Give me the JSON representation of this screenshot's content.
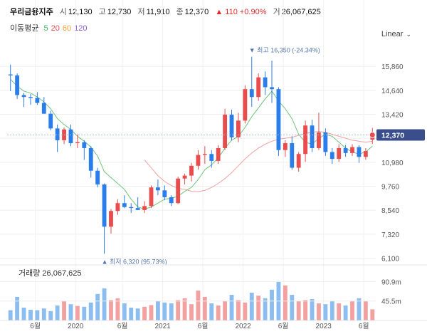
{
  "header": {
    "name": "우리금융지주",
    "open_label": "시",
    "open": "12,130",
    "high_label": "고",
    "high": "12,730",
    "low_label": "저",
    "low": "11,910",
    "close_label": "종",
    "close": "12,370",
    "change": "▲ 110 +0.90%",
    "volume_label": "거",
    "volume": "26,067,625"
  },
  "moving_average": {
    "label": "이동평균",
    "periods": [
      "5",
      "20",
      "60",
      "120"
    ],
    "colors": [
      "#3cba54",
      "#e84c4c",
      "#f0a030",
      "#8a5cd6"
    ]
  },
  "scale_selector": {
    "label": "Linear"
  },
  "volume_panel": {
    "title": "거래량 26,067,625",
    "tick_labels": [
      "90.9m",
      "45.5m"
    ]
  },
  "chart_data": {
    "type": "candlestick",
    "price_axis": {
      "ticks": [
        6100,
        7320,
        8540,
        9760,
        10980,
        12200,
        13420,
        14640,
        15860
      ],
      "tick_labels": [
        "6,100",
        "7,320",
        "8,540",
        "9,760",
        "10,980",
        "",
        "13,420",
        "14,640",
        "15,860"
      ],
      "min": 5900,
      "max": 16700
    },
    "x_tick_labels": [
      "6월",
      "2020",
      "6월",
      "2021",
      "6월",
      "2022",
      "6월",
      "2023",
      "6월"
    ],
    "current_price": {
      "value": 12370,
      "label": "12,370"
    },
    "annotations": [
      {
        "text": "최고 16,350 (-24.34%)",
        "value": 16350,
        "marker": "▼"
      },
      {
        "text": "최저 6,320 (95.73%)",
        "value": 6320,
        "marker": "▲"
      }
    ],
    "candles": [
      [
        15450,
        15950,
        14600,
        15400
      ],
      [
        15400,
        15500,
        14200,
        14400
      ],
      [
        14400,
        14500,
        13800,
        14300
      ],
      [
        14300,
        14450,
        13900,
        14250
      ],
      [
        14250,
        14550,
        13900,
        14000
      ],
      [
        14000,
        14300,
        13450,
        13450
      ],
      [
        13450,
        13600,
        12600,
        12700
      ],
      [
        12700,
        12900,
        11500,
        12100
      ],
      [
        12100,
        12750,
        11900,
        12650
      ],
      [
        12650,
        12900,
        11800,
        11950
      ],
      [
        11950,
        12400,
        11700,
        12000
      ],
      [
        12000,
        12100,
        11100,
        11700
      ],
      [
        11700,
        11800,
        10200,
        10550
      ],
      [
        10550,
        10700,
        9700,
        9850
      ],
      [
        9850,
        9900,
        6320,
        7700
      ],
      [
        7700,
        8600,
        7350,
        8500
      ],
      [
        8500,
        9100,
        8300,
        8900
      ],
      [
        8900,
        9300,
        8650,
        8700
      ],
      [
        8700,
        8900,
        8400,
        8650
      ],
      [
        8650,
        9200,
        8550,
        8550
      ],
      [
        8550,
        9000,
        8400,
        8750
      ],
      [
        8750,
        9800,
        8650,
        9700
      ],
      [
        9700,
        10100,
        9300,
        9550
      ],
      [
        9550,
        9800,
        9050,
        9200
      ],
      [
        9200,
        9300,
        8750,
        8900
      ],
      [
        8900,
        10250,
        8850,
        10150
      ],
      [
        10150,
        10400,
        9850,
        10300
      ],
      [
        10300,
        10950,
        10000,
        10800
      ],
      [
        10800,
        11600,
        10600,
        11350
      ],
      [
        11350,
        11800,
        10900,
        11400
      ],
      [
        11400,
        11600,
        10700,
        11050
      ],
      [
        11050,
        11850,
        10900,
        11700
      ],
      [
        11700,
        13700,
        11600,
        13400
      ],
      [
        13400,
        13650,
        12100,
        12250
      ],
      [
        12250,
        13500,
        12000,
        13100
      ],
      [
        13100,
        14900,
        12950,
        14700
      ],
      [
        14700,
        16350,
        13800,
        14300
      ],
      [
        14300,
        15500,
        14100,
        15300
      ],
      [
        15300,
        15600,
        14400,
        14800
      ],
      [
        14800,
        16150,
        14000,
        14700
      ],
      [
        14700,
        14800,
        11300,
        11600
      ],
      [
        11600,
        12100,
        11250,
        11950
      ],
      [
        11950,
        12300,
        10600,
        10700
      ],
      [
        10700,
        11500,
        10500,
        11400
      ],
      [
        11400,
        13100,
        11000,
        12850
      ],
      [
        12850,
        13150,
        11500,
        11700
      ],
      [
        11700,
        13500,
        11600,
        12500
      ],
      [
        12500,
        12700,
        11300,
        11500
      ],
      [
        11500,
        11700,
        10900,
        11150
      ],
      [
        11150,
        11900,
        11000,
        11700
      ],
      [
        11700,
        11850,
        11250,
        11450
      ],
      [
        11450,
        11900,
        11300,
        11750
      ],
      [
        11750,
        11850,
        10950,
        11250
      ],
      [
        11250,
        11700,
        11100,
        11550
      ],
      [
        12130,
        12730,
        11910,
        12370
      ]
    ],
    "ma5": [
      15200,
      14850,
      14600,
      14500,
      14300,
      14050,
      13700,
      13200,
      12900,
      12650,
      12300,
      12050,
      11750,
      11300,
      10500,
      10200,
      9900,
      9600,
      9100,
      8700,
      8600,
      8700,
      8900,
      9100,
      9150,
      9250,
      9500,
      9700,
      10100,
      10600,
      10850,
      11200,
      11700,
      12100,
      12300,
      12750,
      13300,
      13750,
      14200,
      14600,
      14100,
      13700,
      13200,
      12400,
      12000,
      11900,
      12200,
      12400,
      12300,
      12000,
      11700,
      11500,
      11400,
      11500,
      11800
    ],
    "ma20": [
      null,
      null,
      null,
      null,
      null,
      null,
      null,
      null,
      null,
      null,
      null,
      null,
      null,
      null,
      null,
      null,
      null,
      null,
      null,
      null,
      11100,
      10700,
      10300,
      10000,
      9800,
      9650,
      9600,
      9500,
      9480,
      9550,
      9700,
      9900,
      10150,
      10450,
      10800,
      11150,
      11450,
      11700,
      11900,
      12050,
      12150,
      12200,
      12250,
      12350,
      12450,
      12500,
      12550,
      12500,
      12400,
      12300,
      12200,
      12100,
      12050,
      12000,
      12050
    ],
    "volume": {
      "max": 110000000,
      "values": [
        24,
        55,
        30,
        25,
        24,
        28,
        22,
        35,
        45,
        38,
        34,
        32,
        42,
        62,
        75,
        48,
        52,
        40,
        30,
        28,
        32,
        36,
        45,
        42,
        40,
        48,
        52,
        38,
        70,
        55,
        40,
        35,
        45,
        60,
        48,
        42,
        65,
        58,
        52,
        72,
        92,
        82,
        60,
        45,
        48,
        50,
        40,
        38,
        45,
        40,
        35,
        46,
        52,
        45,
        26
      ]
    }
  }
}
